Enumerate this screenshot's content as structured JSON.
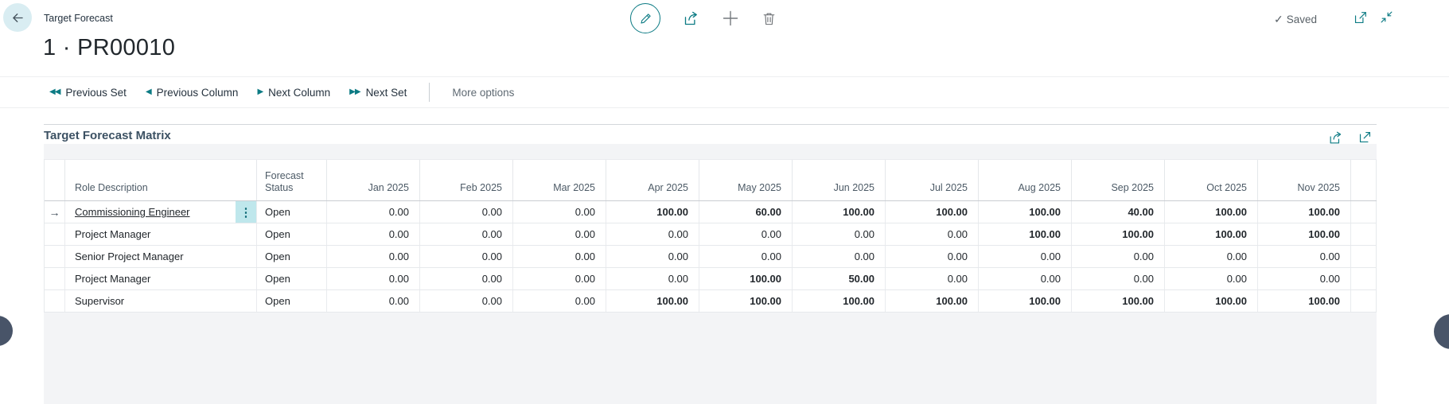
{
  "colors": {
    "accent_teal": "#0c7b84",
    "selection_cell_bg": "#bfe7ec",
    "panel_gray": "#f3f4f6",
    "handle_dark": "#485468",
    "back_circle": "#d9edf2"
  },
  "header": {
    "caption": "Target Forecast",
    "title": "1 · PR00010",
    "saved_icon": "✓",
    "saved_label": "Saved",
    "icons": {
      "back": "arrow-left",
      "edit": "pencil-in-circle",
      "share": "share-arrow",
      "new": "plus",
      "delete": "trash",
      "popout": "open-in-new-window",
      "minimize": "collapse-arrows"
    }
  },
  "action_bar": {
    "items": [
      {
        "label": "Previous Set",
        "glyph": "◀◀",
        "icon": "double-left-triangles"
      },
      {
        "label": "Previous Column",
        "glyph": "◀",
        "icon": "left-triangle"
      },
      {
        "label": "Next Column",
        "glyph": "▶",
        "icon": "right-triangle"
      },
      {
        "label": "Next Set",
        "glyph": "▶▶",
        "icon": "double-right-triangles"
      }
    ],
    "more_options": "More options"
  },
  "matrix": {
    "title": "Target Forecast Matrix",
    "icons": {
      "share": "share-arrow",
      "expand": "maximize-arrow",
      "selected_arrow": "→",
      "row_menu": "⋮"
    },
    "columns": {
      "role": "Role Description",
      "status": "Forecast Status",
      "months": [
        "Jan 2025",
        "Feb 2025",
        "Mar 2025",
        "Apr 2025",
        "May 2025",
        "Jun 2025",
        "Jul 2025",
        "Aug 2025",
        "Sep 2025",
        "Oct 2025",
        "Nov 2025"
      ]
    },
    "rows": [
      {
        "role": "Commissioning Engineer",
        "status": "Open",
        "selected": true,
        "values": [
          "0.00",
          "0.00",
          "0.00",
          "100.00",
          "60.00",
          "100.00",
          "100.00",
          "100.00",
          "40.00",
          "100.00",
          "100.00"
        ]
      },
      {
        "role": "Project Manager",
        "status": "Open",
        "selected": false,
        "values": [
          "0.00",
          "0.00",
          "0.00",
          "0.00",
          "0.00",
          "0.00",
          "0.00",
          "100.00",
          "100.00",
          "100.00",
          "100.00"
        ]
      },
      {
        "role": "Senior Project Manager",
        "status": "Open",
        "selected": false,
        "values": [
          "0.00",
          "0.00",
          "0.00",
          "0.00",
          "0.00",
          "0.00",
          "0.00",
          "0.00",
          "0.00",
          "0.00",
          "0.00"
        ]
      },
      {
        "role": "Project Manager",
        "status": "Open",
        "selected": false,
        "values": [
          "0.00",
          "0.00",
          "0.00",
          "0.00",
          "100.00",
          "50.00",
          "0.00",
          "0.00",
          "0.00",
          "0.00",
          "0.00"
        ]
      },
      {
        "role": "Supervisor",
        "status": "Open",
        "selected": false,
        "values": [
          "0.00",
          "0.00",
          "0.00",
          "100.00",
          "100.00",
          "100.00",
          "100.00",
          "100.00",
          "100.00",
          "100.00",
          "100.00"
        ]
      }
    ]
  }
}
